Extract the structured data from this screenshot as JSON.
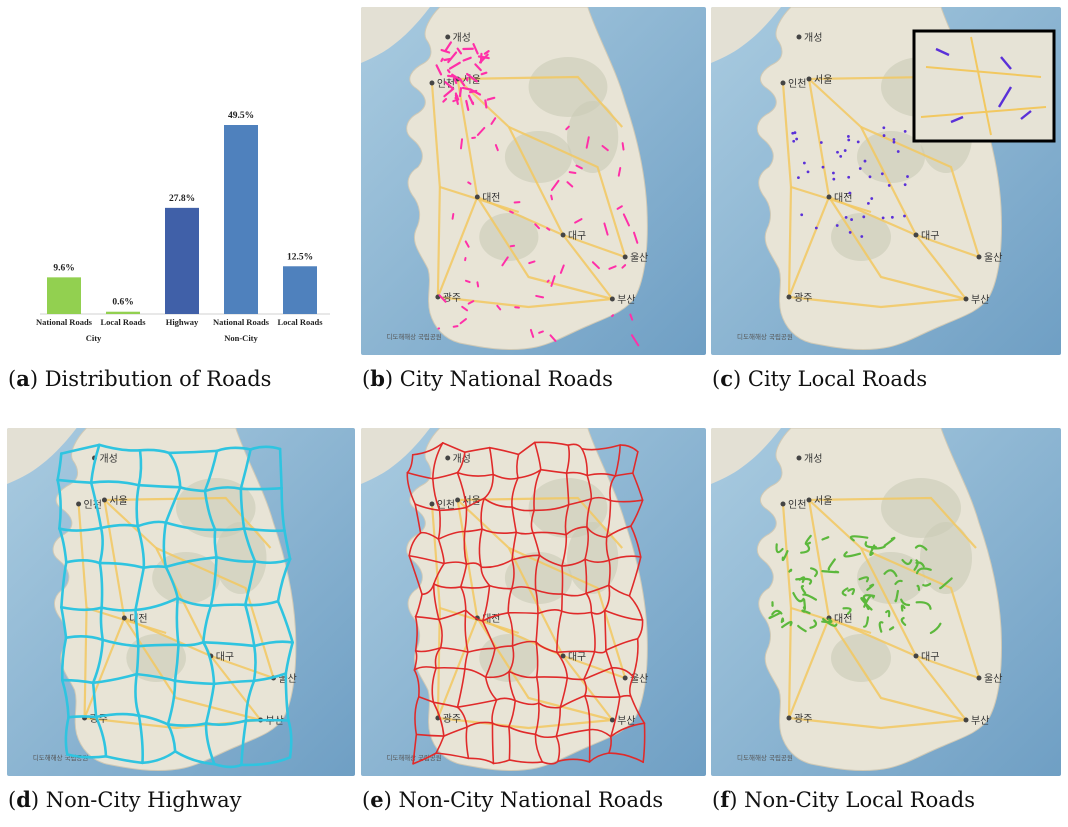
{
  "chart_data": {
    "type": "bar",
    "categories": [
      "National Roads",
      "Local Roads",
      "Highway",
      "National Roads",
      "Local Roads"
    ],
    "groups": [
      "City",
      "City",
      "Non-City",
      "Non-City",
      "Non-City"
    ],
    "group_labels": [
      "City",
      "Non-City"
    ],
    "values": [
      9.6,
      0.6,
      27.8,
      49.5,
      12.5
    ],
    "value_labels": [
      "9.6%",
      "0.6%",
      "27.8%",
      "49.5%",
      "12.5%"
    ],
    "colors": [
      "#92d050",
      "#92d050",
      "#4060a8",
      "#4f81bd",
      "#4f81bd"
    ],
    "unit": "%",
    "ylim": [
      0,
      55
    ],
    "grid": false,
    "legend": "none"
  },
  "captions": {
    "a": {
      "letter": "a",
      "text": "Distribution of Roads"
    },
    "b": {
      "letter": "b",
      "text": "City National Roads"
    },
    "c": {
      "letter": "c",
      "text": "City Local Roads"
    },
    "d": {
      "letter": "d",
      "text": "Non-City Highway"
    },
    "e": {
      "letter": "e",
      "text": "Non-City National Roads"
    },
    "f": {
      "letter": "f",
      "text": "Non-City Local Roads"
    }
  },
  "maps": {
    "b": {
      "road_color": "#ff2fa8"
    },
    "c": {
      "road_color": "#5a30d8",
      "has_inset": true
    },
    "d": {
      "road_color": "#2fc4e0"
    },
    "e": {
      "road_color": "#e02a2a"
    },
    "f": {
      "road_color": "#5cb83c"
    }
  },
  "map_labels": {
    "north_city": "개성",
    "capital": "서울",
    "incheon": "인천",
    "daejeon": "대전",
    "daegu": "대구",
    "ulsan": "울산",
    "busan": "부산",
    "gwangju": "광주",
    "attribution": "디도해해상 국립공원"
  }
}
